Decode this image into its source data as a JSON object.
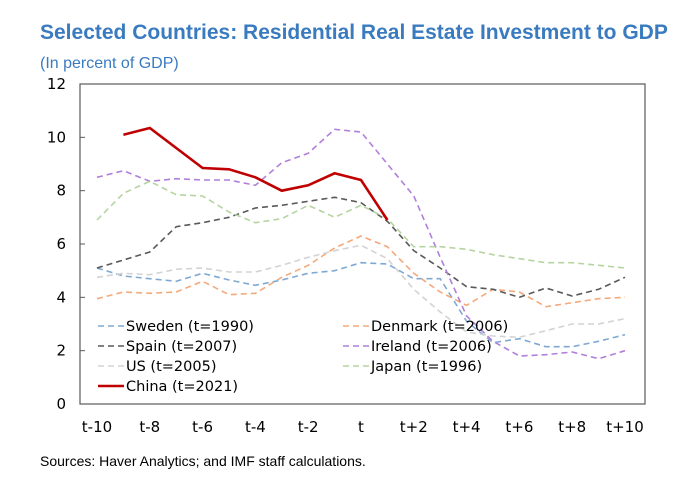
{
  "chart_data": {
    "type": "line",
    "title": "Selected Countries: Residential Real Estate Investment to GDP",
    "subtitle": "(In percent of GDP)",
    "x": [
      "t-10",
      "t-9",
      "t-8",
      "t-7",
      "t-6",
      "t-5",
      "t-4",
      "t-3",
      "t-2",
      "t-1",
      "t",
      "t+1",
      "t+2",
      "t+3",
      "t+4",
      "t+5",
      "t+6",
      "t+7",
      "t+8",
      "t+9",
      "t+10"
    ],
    "x_tick_labels": [
      "t-10",
      "t-8",
      "t-6",
      "t-4",
      "t-2",
      "t",
      "t+2",
      "t+4",
      "t+6",
      "t+8",
      "t+10"
    ],
    "ylim": [
      0,
      12
    ],
    "y_ticks": [
      0,
      2,
      4,
      6,
      8,
      10,
      12
    ],
    "grid": false,
    "legend_position": "bottom-left inside",
    "series": [
      {
        "name": "Sweden (t=1990)",
        "color": "#7fa9d4",
        "dashed": true,
        "values": [
          5.1,
          4.8,
          4.7,
          4.6,
          4.9,
          4.65,
          4.45,
          4.65,
          4.9,
          5.0,
          5.3,
          5.25,
          4.7,
          4.7,
          3.1,
          2.3,
          2.45,
          2.15,
          2.15,
          2.35,
          2.6
        ]
      },
      {
        "name": "Denmark (t=2006)",
        "color": "#f4a97a",
        "dashed": true,
        "values": [
          3.95,
          4.2,
          4.15,
          4.2,
          4.6,
          4.1,
          4.15,
          4.75,
          5.2,
          5.85,
          6.3,
          5.9,
          4.9,
          4.2,
          3.7,
          4.3,
          4.2,
          3.65,
          3.8,
          3.95,
          4.0
        ]
      },
      {
        "name": "Spain (t=2007)",
        "color": "#595959",
        "dashed": true,
        "values": [
          5.1,
          5.4,
          5.7,
          6.65,
          6.8,
          7.0,
          7.35,
          7.45,
          7.6,
          7.75,
          7.55,
          6.85,
          5.75,
          5.1,
          4.4,
          4.3,
          4.0,
          4.35,
          4.05,
          4.3,
          4.75
        ]
      },
      {
        "name": "Ireland (t=2006)",
        "color": "#b07fdc",
        "dashed": true,
        "values": [
          8.5,
          8.75,
          8.35,
          8.45,
          8.4,
          8.4,
          8.2,
          9.05,
          9.4,
          10.3,
          10.2,
          9.0,
          7.8,
          5.5,
          3.3,
          2.35,
          1.8,
          1.85,
          1.95,
          1.7,
          2.0
        ]
      },
      {
        "name": "US (t=2005)",
        "color": "#d3d3d3",
        "dashed": true,
        "values": [
          4.75,
          4.9,
          4.85,
          5.05,
          5.1,
          4.95,
          4.95,
          5.2,
          5.5,
          5.75,
          5.95,
          5.45,
          4.3,
          3.45,
          2.7,
          2.55,
          2.5,
          2.75,
          3.0,
          3.0,
          3.2
        ]
      },
      {
        "name": "Japan (t=1996)",
        "color": "#b5d4a0",
        "dashed": true,
        "values": [
          6.9,
          7.9,
          8.35,
          7.85,
          7.8,
          7.2,
          6.8,
          6.95,
          7.45,
          7.0,
          7.45,
          6.95,
          5.9,
          5.9,
          5.8,
          5.6,
          5.45,
          5.3,
          5.3,
          5.2,
          5.1
        ]
      },
      {
        "name": "China (t=2021)",
        "color": "#c00000",
        "dashed": false,
        "values": [
          null,
          10.1,
          10.35,
          9.6,
          8.85,
          8.8,
          8.5,
          8.0,
          8.2,
          8.65,
          8.4,
          6.9,
          null,
          null,
          null,
          null,
          null,
          null,
          null,
          null,
          null
        ]
      }
    ]
  },
  "source": "Sources: Haver Analytics; and IMF staff calculations."
}
